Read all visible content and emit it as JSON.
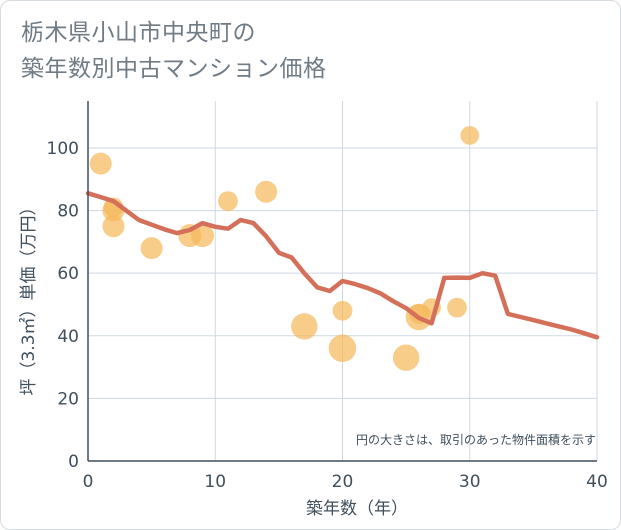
{
  "chart_data": {
    "type": "scatter",
    "title_lines": [
      "栃木県小山市中央町の",
      "築年数別中古マンション価格"
    ],
    "xlabel": "築年数（年）",
    "ylabel": "坪（3.3㎡）単価（万円）",
    "xlim": [
      0,
      40
    ],
    "ylim": [
      0,
      115
    ],
    "x_ticks": [
      0,
      10,
      20,
      30,
      40
    ],
    "y_ticks": [
      0,
      20,
      40,
      60,
      80,
      100
    ],
    "grid": true,
    "annotation": "円の大きさは、取引のあった物件面積を示す",
    "colors": {
      "bubble": "#f5b95b",
      "line": "#d4705a",
      "grid": "#cfd8e0",
      "axis": "#3f4f5c"
    },
    "scatter": [
      {
        "x": 1,
        "y": 95,
        "size": 1.0
      },
      {
        "x": 2,
        "y": 80,
        "size": 1.0
      },
      {
        "x": 2,
        "y": 81,
        "size": 0.9
      },
      {
        "x": 2,
        "y": 75,
        "size": 1.0
      },
      {
        "x": 5,
        "y": 68,
        "size": 1.0
      },
      {
        "x": 8,
        "y": 72,
        "size": 1.05
      },
      {
        "x": 9,
        "y": 72,
        "size": 1.05
      },
      {
        "x": 11,
        "y": 83,
        "size": 0.9
      },
      {
        "x": 14,
        "y": 86,
        "size": 1.0
      },
      {
        "x": 17,
        "y": 43,
        "size": 1.2
      },
      {
        "x": 20,
        "y": 48,
        "size": 0.9
      },
      {
        "x": 20,
        "y": 36,
        "size": 1.25
      },
      {
        "x": 25,
        "y": 33,
        "size": 1.2
      },
      {
        "x": 26,
        "y": 46,
        "size": 1.2
      },
      {
        "x": 26,
        "y": 47,
        "size": 0.9
      },
      {
        "x": 27,
        "y": 49,
        "size": 0.85
      },
      {
        "x": 29,
        "y": 49,
        "size": 0.9
      },
      {
        "x": 30,
        "y": 104,
        "size": 0.85
      }
    ],
    "line": {
      "x": [
        0,
        1,
        2,
        3,
        4,
        5,
        6,
        7,
        8,
        9,
        10,
        11,
        12,
        13,
        14,
        15,
        16,
        17,
        18,
        19,
        20,
        21,
        22,
        23,
        24,
        25,
        26,
        27,
        28,
        29,
        30,
        31,
        32,
        33,
        34,
        35,
        36,
        37,
        38,
        39,
        40
      ],
      "y": [
        85.5,
        84.3,
        83,
        80,
        77,
        75.5,
        74,
        72.8,
        73.8,
        76,
        74.8,
        74.2,
        77,
        76,
        71.8,
        66.5,
        65,
        60,
        55.5,
        54.3,
        57.5,
        56.5,
        55.2,
        53.5,
        51,
        48.8,
        45.7,
        44,
        58.5,
        58.6,
        58.5,
        60,
        59.2,
        47,
        46,
        45,
        44,
        43,
        42,
        40.8,
        39.5
      ]
    }
  }
}
